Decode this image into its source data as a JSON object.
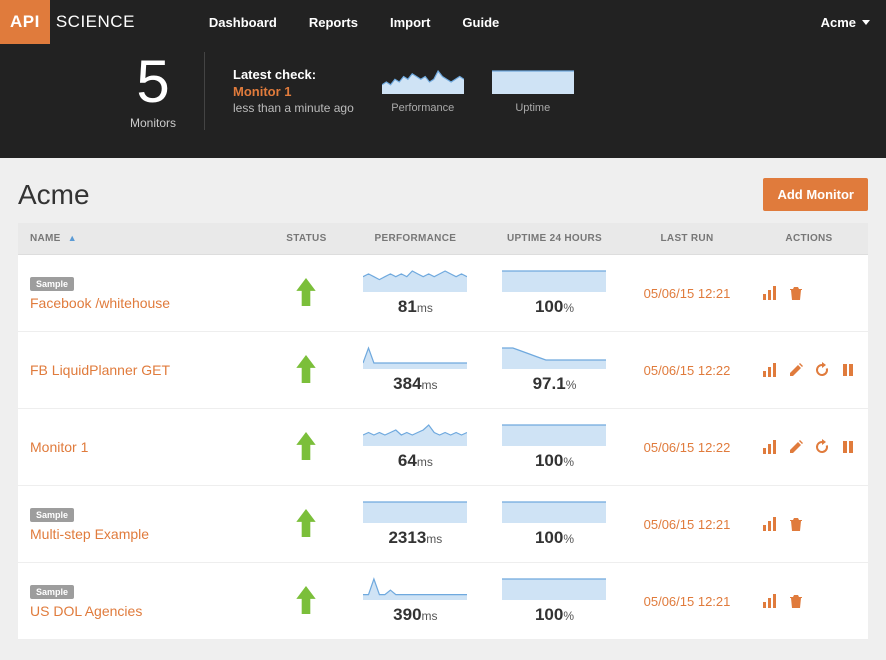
{
  "brand": {
    "left": "API",
    "right": "SCIENCE"
  },
  "nav": {
    "items": [
      "Dashboard",
      "Reports",
      "Import",
      "Guide"
    ],
    "account": "Acme"
  },
  "summary": {
    "count": "5",
    "count_label": "Monitors",
    "latest_heading": "Latest check:",
    "latest_monitor": "Monitor 1",
    "latest_ago": "less than a minute ago",
    "perf_caption": "Performance",
    "uptime_caption": "Uptime",
    "perf_spark": {
      "points": [
        3,
        4,
        3,
        5,
        4,
        6,
        5,
        7,
        6,
        5,
        6,
        4,
        5,
        8,
        6,
        5,
        4,
        5,
        6,
        5
      ],
      "stroke": "#6fa9de",
      "fill": "#cfe3f5"
    },
    "uptime_spark": {
      "points": [
        10,
        10,
        10,
        10,
        10,
        10,
        10,
        10,
        10,
        10,
        10,
        10,
        10,
        10,
        10,
        10,
        10,
        10,
        10,
        10
      ],
      "stroke": "#6fa9de",
      "fill": "#cfe3f5"
    }
  },
  "page": {
    "title": "Acme",
    "add_button": "Add Monitor"
  },
  "columns": {
    "name": "NAME",
    "status": "STATUS",
    "perf": "PERFORMANCE",
    "uptime": "UPTIME 24 HOURS",
    "last": "LAST RUN",
    "actions": "ACTIONS"
  },
  "colors": {
    "accent": "#e07b3c",
    "status_up": "#7bbf3a",
    "spark_stroke": "#6fa9de",
    "spark_fill": "#cfe3f5"
  },
  "rows": [
    {
      "sample": true,
      "name": "Facebook /whitehouse",
      "status": "up",
      "perf_ms": "81",
      "perf_spark": [
        5,
        6,
        5,
        4,
        5,
        6,
        5,
        6,
        5,
        7,
        6,
        5,
        6,
        5,
        6,
        7,
        6,
        5,
        6,
        5
      ],
      "uptime_pct": "100",
      "uptime_spark": [
        10,
        10,
        10,
        10,
        10,
        10,
        10,
        10,
        10,
        10,
        10,
        10,
        10,
        10,
        10,
        10,
        10,
        10,
        10,
        10
      ],
      "last_run": "05/06/15 12:21",
      "actions": [
        "chart",
        "trash"
      ]
    },
    {
      "sample": false,
      "name": "FB LiquidPlanner GET",
      "status": "up",
      "perf_ms": "384",
      "perf_spark": [
        2,
        8,
        2,
        2,
        2,
        2,
        2,
        2,
        2,
        2,
        2,
        2,
        2,
        2,
        2,
        2,
        2,
        2,
        2,
        2
      ],
      "uptime_pct": "97.1",
      "uptime_spark": [
        10,
        10,
        10,
        9,
        8,
        7,
        6,
        5,
        4,
        4,
        4,
        4,
        4,
        4,
        4,
        4,
        4,
        4,
        4,
        4
      ],
      "last_run": "05/06/15 12:22",
      "actions": [
        "chart",
        "edit",
        "refresh",
        "pause"
      ]
    },
    {
      "sample": false,
      "name": "Monitor 1",
      "status": "up",
      "perf_ms": "64",
      "perf_spark": [
        4,
        5,
        4,
        5,
        4,
        5,
        6,
        4,
        5,
        4,
        5,
        6,
        8,
        5,
        4,
        5,
        4,
        5,
        4,
        5
      ],
      "uptime_pct": "100",
      "uptime_spark": [
        10,
        10,
        10,
        10,
        10,
        10,
        10,
        10,
        10,
        10,
        10,
        10,
        10,
        10,
        10,
        10,
        10,
        10,
        10,
        10
      ],
      "last_run": "05/06/15 12:22",
      "actions": [
        "chart",
        "edit",
        "refresh",
        "pause"
      ]
    },
    {
      "sample": true,
      "name": "Multi-step Example",
      "status": "up",
      "perf_ms": "2313",
      "perf_spark": [
        4,
        4,
        4,
        4,
        4,
        4,
        4,
        4,
        4,
        4,
        4,
        4,
        4,
        4,
        4,
        4,
        4,
        4,
        4,
        4
      ],
      "uptime_pct": "100",
      "uptime_spark": [
        10,
        10,
        10,
        10,
        10,
        10,
        10,
        10,
        10,
        10,
        10,
        10,
        10,
        10,
        10,
        10,
        10,
        10,
        10,
        10
      ],
      "last_run": "05/06/15 12:21",
      "actions": [
        "chart",
        "trash"
      ]
    },
    {
      "sample": true,
      "name": "US DOL Agencies",
      "status": "up",
      "perf_ms": "390",
      "perf_spark": [
        2,
        2,
        9,
        2,
        2,
        4,
        2,
        2,
        2,
        2,
        2,
        2,
        2,
        2,
        2,
        2,
        2,
        2,
        2,
        2
      ],
      "uptime_pct": "100",
      "uptime_spark": [
        10,
        10,
        10,
        10,
        10,
        10,
        10,
        10,
        10,
        10,
        10,
        10,
        10,
        10,
        10,
        10,
        10,
        10,
        10,
        10
      ],
      "last_run": "05/06/15 12:21",
      "actions": [
        "chart",
        "trash"
      ]
    }
  ]
}
